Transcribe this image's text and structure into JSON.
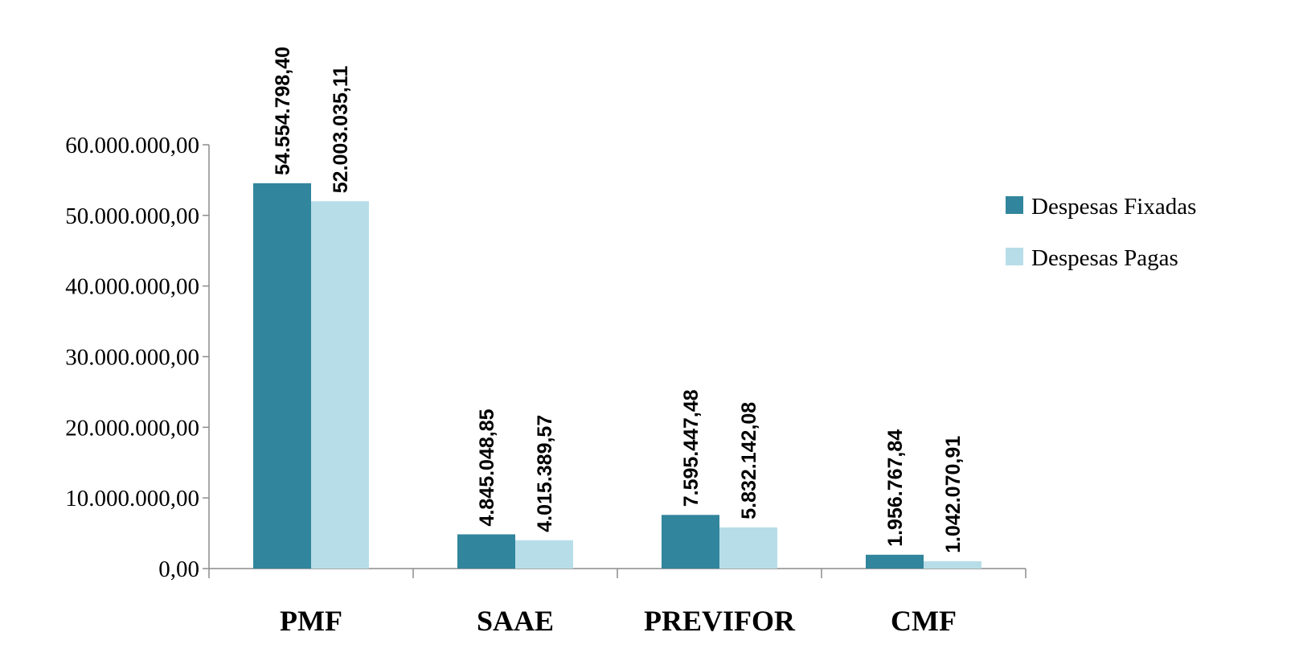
{
  "chart_data": {
    "type": "bar",
    "title": "",
    "xlabel": "",
    "ylabel": "",
    "categories": [
      "PMF",
      "SAAE",
      "PREVIFOR",
      "CMF"
    ],
    "series": [
      {
        "name": "Despesas Fixadas",
        "color": "#31859C",
        "values": [
          54554798.4,
          4845048.85,
          7595447.48,
          1956767.84
        ],
        "labels": [
          "54.554.798,40",
          "4.845.048,85",
          "7.595.447,48",
          "1.956.767,84"
        ]
      },
      {
        "name": "Despesas Pagas",
        "color": "#B7DEE8",
        "values": [
          52003035.11,
          4015389.57,
          5832142.08,
          1042070.91
        ],
        "labels": [
          "52.003.035,11",
          "4.015.389,57",
          "5.832.142,08",
          "1.042.070,91"
        ]
      }
    ],
    "ylim": [
      0,
      60000000
    ],
    "yticks": [
      0,
      10000000,
      20000000,
      30000000,
      40000000,
      50000000,
      60000000
    ],
    "ytick_labels": [
      "0,00",
      "10.000.000,00",
      "20.000.000,00",
      "30.000.000,00",
      "40.000.000,00",
      "50.000.000,00",
      "60.000.000,00"
    ],
    "grid": false,
    "legend_position": "right"
  }
}
